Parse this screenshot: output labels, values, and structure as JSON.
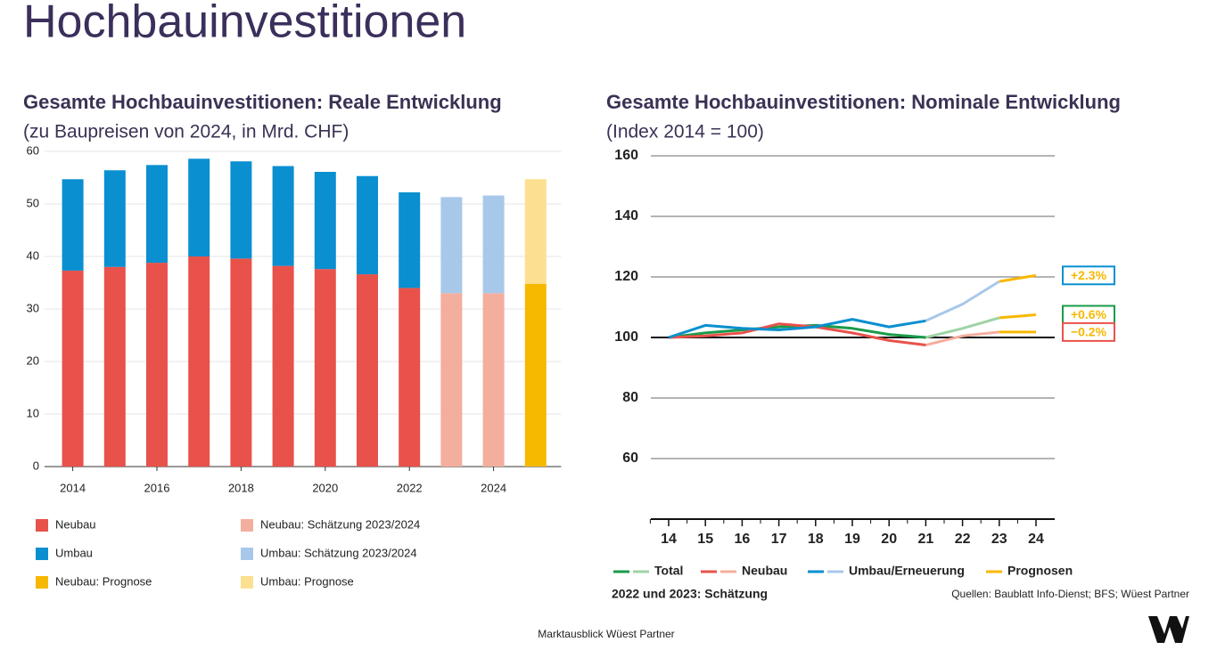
{
  "title": "Hochbauinvestitionen",
  "footer": "Marktausblick Wüest Partner",
  "chart_data": [
    {
      "type": "bar",
      "stacked": true,
      "title": "Gesamte Hochbauinvestitionen: Reale Entwicklung",
      "subtitle": "(zu Baupreisen von 2024, in Mrd. CHF)",
      "categories": [
        "2014",
        null,
        "2016",
        null,
        "2018",
        null,
        "2020",
        null,
        "2022",
        null,
        "2024",
        null
      ],
      "series": [
        {
          "name": "Neubau",
          "color": "#e8524a",
          "values": [
            37.3,
            38.0,
            38.8,
            40.0,
            39.6,
            38.2,
            37.6,
            36.6,
            34.0,
            null,
            null,
            null
          ]
        },
        {
          "name": "Umbau",
          "color": "#0a8fd0",
          "values": [
            17.4,
            18.4,
            18.6,
            18.6,
            18.5,
            19.0,
            18.5,
            18.7,
            18.2,
            null,
            null,
            null
          ]
        },
        {
          "name": "Neubau: Schätzung 2023/2024",
          "color": "#f4ae9e",
          "values": [
            null,
            null,
            null,
            null,
            null,
            null,
            null,
            null,
            null,
            33.0,
            33.0,
            null
          ]
        },
        {
          "name": "Umbau: Schätzung 2023/2024",
          "color": "#a8c8ea",
          "values": [
            null,
            null,
            null,
            null,
            null,
            null,
            null,
            null,
            null,
            18.3,
            18.6,
            null
          ]
        },
        {
          "name": "Neubau: Prognose",
          "color": "#f7b800",
          "values": [
            null,
            null,
            null,
            null,
            null,
            null,
            null,
            null,
            null,
            null,
            null,
            34.8
          ]
        },
        {
          "name": "Umbau: Prognose",
          "color": "#fcdf90",
          "values": [
            null,
            null,
            null,
            null,
            null,
            null,
            null,
            null,
            null,
            null,
            null,
            19.9
          ]
        }
      ],
      "ylim": [
        0,
        60
      ],
      "yticks": [
        0,
        10,
        20,
        30,
        40,
        50,
        60
      ],
      "grid": true
    },
    {
      "type": "line",
      "title": "Gesamte Hochbauinvestitionen: Nominale Entwicklung",
      "subtitle": "(Index 2014 = 100)",
      "categories": [
        "14",
        "15",
        "16",
        "17",
        "18",
        "19",
        "20",
        "21",
        "22",
        "23",
        "24"
      ],
      "series": [
        {
          "name": "Total",
          "color": "#1a9b4a",
          "estimate_color": "#9fd3a5",
          "end_label": "+0.6%",
          "values": [
            100,
            101.5,
            102.5,
            103.5,
            104,
            103,
            101,
            100,
            null,
            null,
            null
          ],
          "estimate_values": [
            null,
            null,
            null,
            null,
            null,
            null,
            null,
            100,
            103,
            106.5,
            null
          ],
          "forecast_values": [
            null,
            null,
            null,
            null,
            null,
            null,
            null,
            null,
            null,
            106.5,
            107.5
          ]
        },
        {
          "name": "Neubau",
          "color": "#e8524a",
          "estimate_color": "#f4ae9e",
          "end_label": "−0.2%",
          "values": [
            100,
            100.5,
            101.5,
            104.5,
            103.5,
            101.5,
            99,
            97.5,
            null,
            null,
            null
          ],
          "estimate_values": [
            null,
            null,
            null,
            null,
            null,
            null,
            null,
            97.5,
            100.5,
            101.8,
            null
          ],
          "forecast_values": [
            null,
            null,
            null,
            null,
            null,
            null,
            null,
            null,
            null,
            101.8,
            101.8
          ]
        },
        {
          "name": "Umbau/Erneuerung",
          "color": "#0a8fd0",
          "estimate_color": "#a8c8ea",
          "end_label": "+2.3%",
          "values": [
            100,
            104,
            103,
            102.5,
            103.5,
            106,
            103.5,
            105.5,
            null,
            null,
            null
          ],
          "estimate_values": [
            null,
            null,
            null,
            null,
            null,
            null,
            null,
            105.5,
            111,
            118.5,
            null
          ],
          "forecast_values": [
            null,
            null,
            null,
            null,
            null,
            null,
            null,
            null,
            null,
            118.5,
            120.5
          ]
        }
      ],
      "forecast_name": "Prognosen",
      "forecast_color": "#f7b800",
      "ylim": [
        40,
        160
      ],
      "yticks": [
        60,
        80,
        100,
        120,
        140,
        160
      ],
      "grid": true,
      "reference_line": 100,
      "note": "2022 und 2023: Schätzung",
      "source": "Quellen: Baublatt Info-Dienst; BFS; Wüest Partner"
    }
  ]
}
